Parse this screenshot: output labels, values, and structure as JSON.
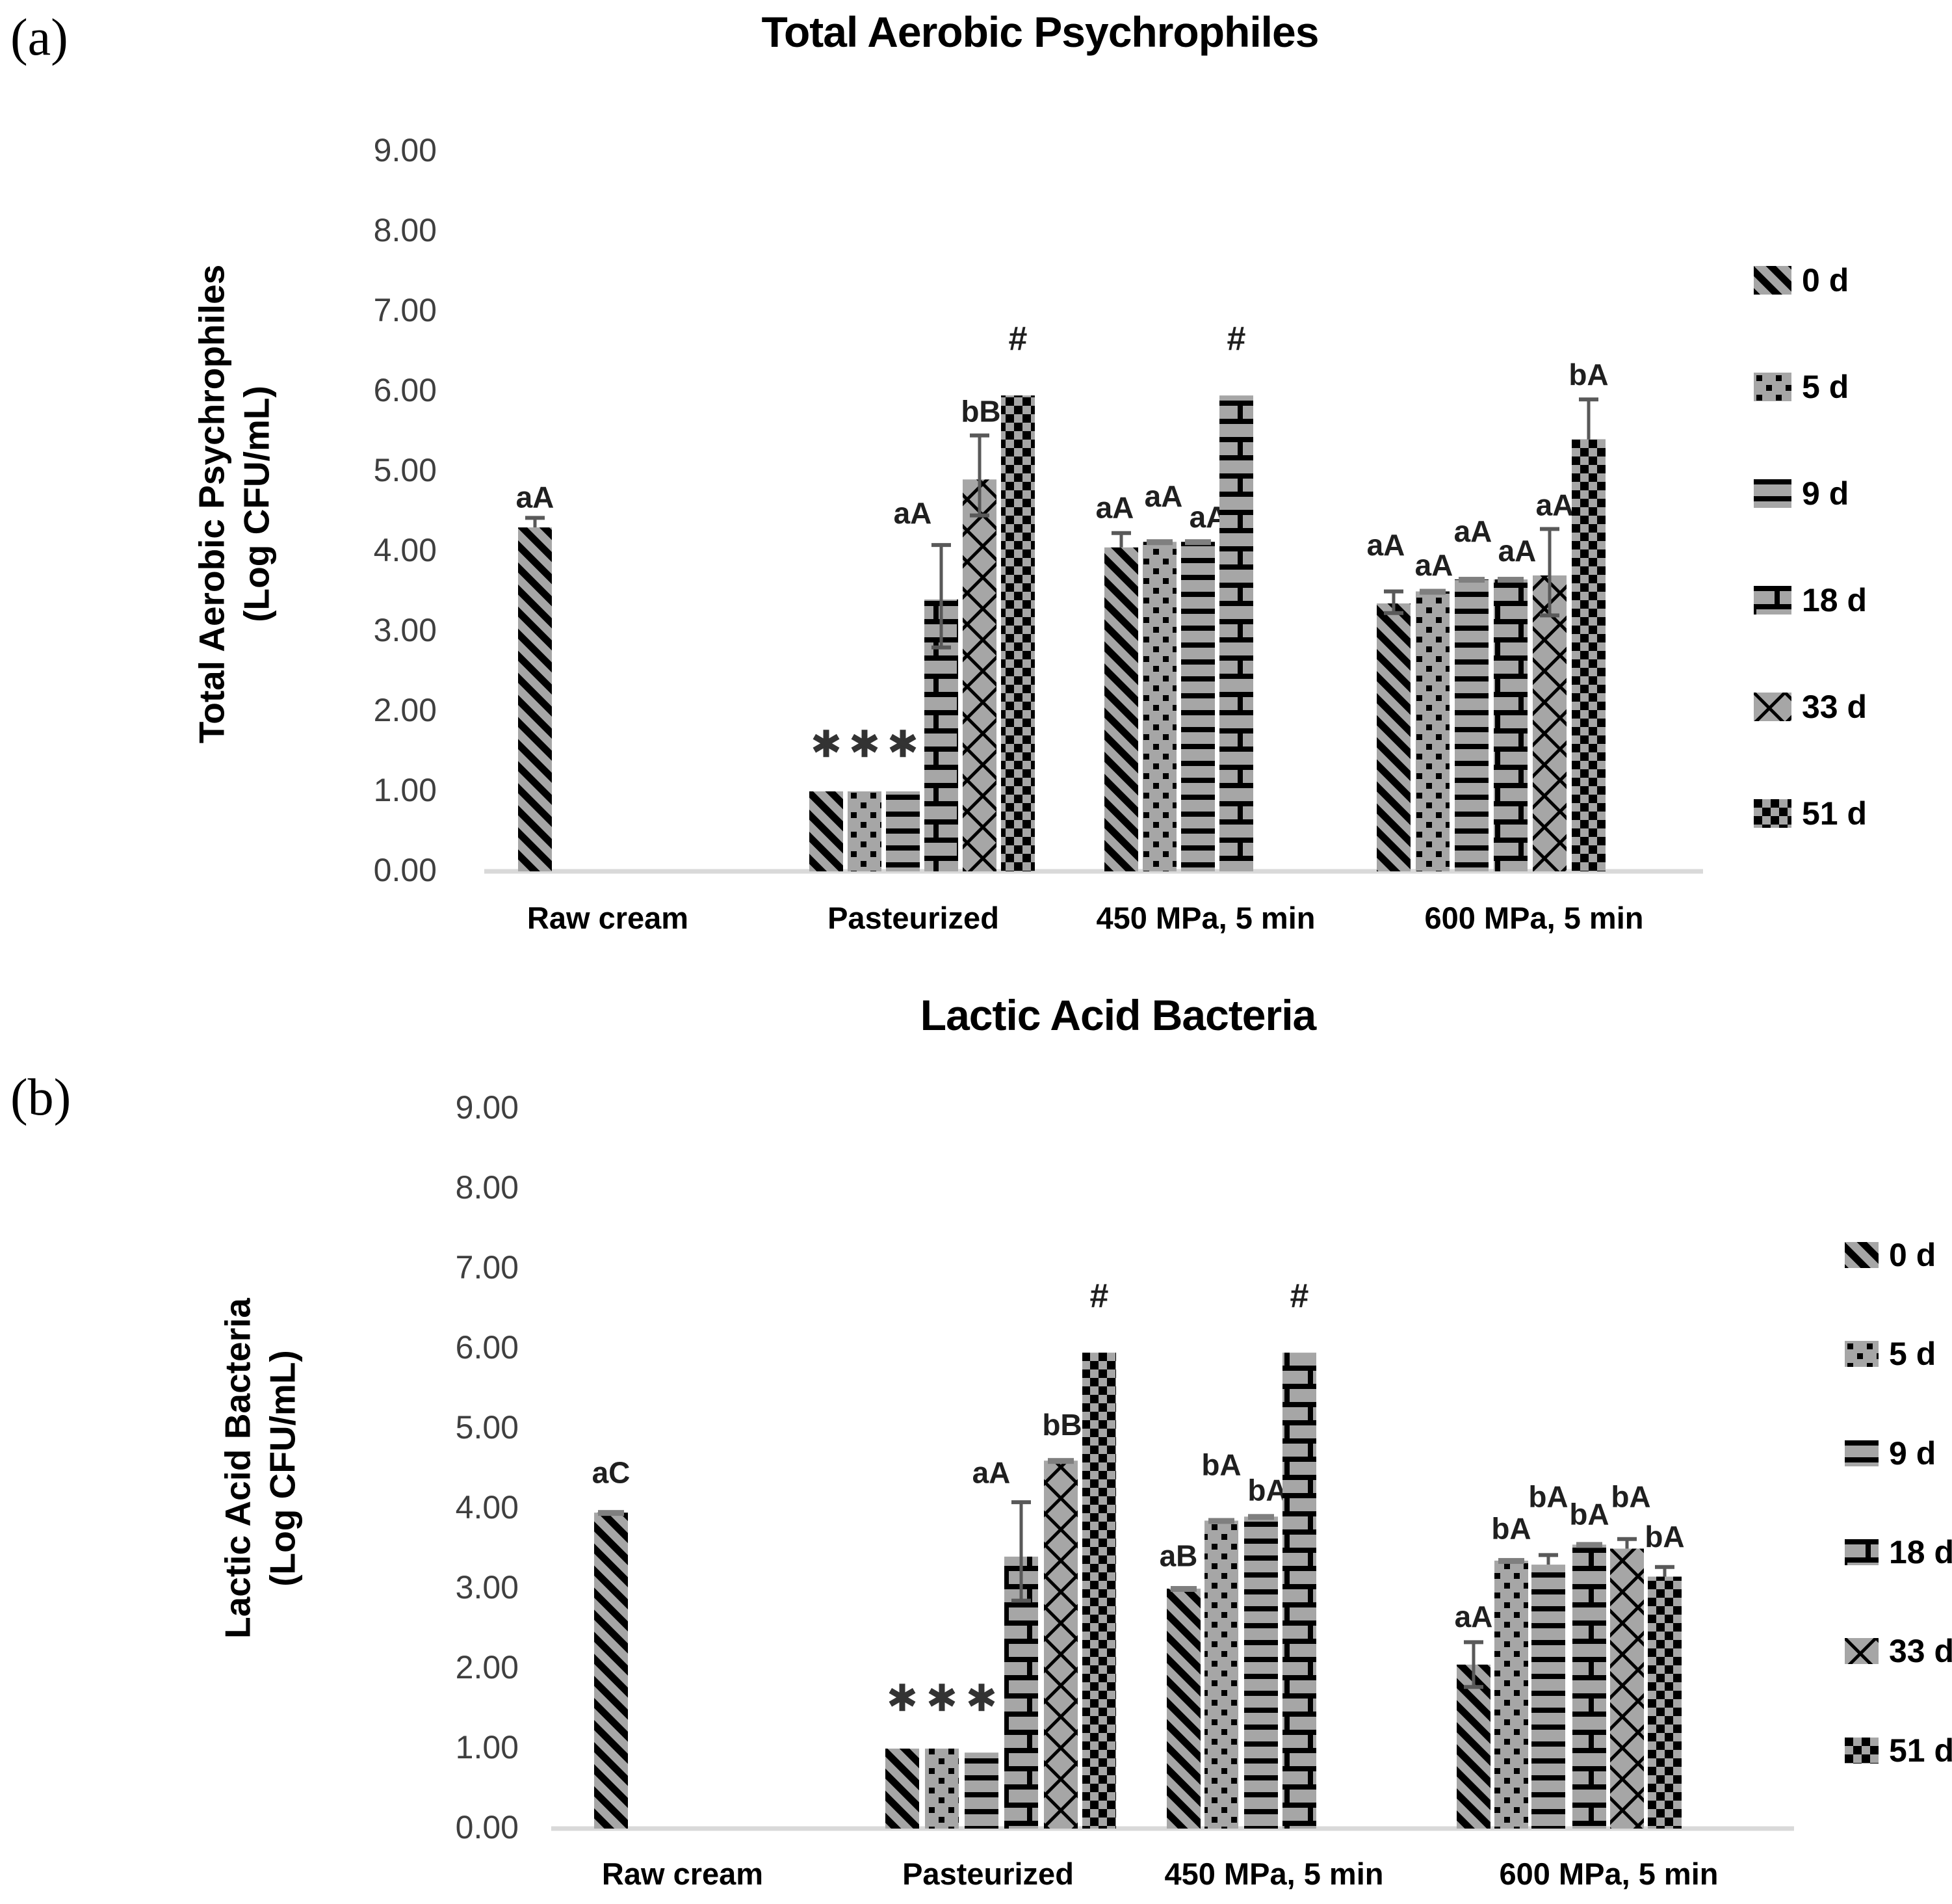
{
  "panel_labels": [
    "(a)",
    "(b)"
  ],
  "legend": {
    "items": [
      {
        "label": "0 d",
        "pattern": "diagonal-stripes"
      },
      {
        "label": "5 d",
        "pattern": "dots"
      },
      {
        "label": "9 d",
        "pattern": "horizontal-lines"
      },
      {
        "label": "18 d",
        "pattern": "brick"
      },
      {
        "label": "33 d",
        "pattern": "diamond-lattice"
      },
      {
        "label": "51 d",
        "pattern": "checkerboard"
      }
    ]
  },
  "colors": {
    "bar_gray": "#a6a6a6",
    "pattern_black": "#000000",
    "error_bar": "#595959",
    "bar_cap": "#7f7f7f",
    "axis_line": "#d9d9d9",
    "tick_text": "#3f3f3f",
    "text": "#000000"
  },
  "chart_data": [
    {
      "id": "a",
      "type": "bar",
      "title": "Total Aerobic Psychrophiles",
      "ylabel_line1": "Total Aerobic Psychrophiles",
      "ylabel_line2": "(Log CFU/mL)",
      "ylim": [
        0,
        9
      ],
      "ytick_labels": [
        "9.00",
        "8.00",
        "7.00",
        "6.00",
        "5.00",
        "4.00",
        "3.00",
        "2.00",
        "1.00",
        "0.00"
      ],
      "series_labels": [
        "0 d",
        "5 d",
        "9 d",
        "18 d",
        "33 d",
        "51 d"
      ],
      "categories": [
        "Raw cream",
        "Pasteurized",
        "450 MPa, 5 min",
        "600 MPa, 5 min"
      ],
      "legend_position": "right",
      "grid": false,
      "groups": [
        {
          "category": "Raw cream",
          "bars": [
            {
              "series": "0 d",
              "value": 4.3,
              "err_up": 0.12,
              "label": "aA"
            }
          ]
        },
        {
          "category": "Pasteurized",
          "bars": [
            {
              "series": "0 d",
              "value": 1.0,
              "symbol": "✳"
            },
            {
              "series": "5 d",
              "value": 1.0,
              "symbol": "✳"
            },
            {
              "series": "9 d",
              "value": 1.0,
              "symbol": "✳"
            },
            {
              "series": "18 d",
              "value": 3.4,
              "err_up": 0.68,
              "err_down": 0.6,
              "label": "aA"
            },
            {
              "series": "33 d",
              "value": 4.9,
              "err_up": 0.55,
              "err_down": 0.45,
              "label": "bB"
            },
            {
              "series": "51 d",
              "value": 5.95,
              "label": "#"
            }
          ]
        },
        {
          "category": "450 MPa, 5 min",
          "bars": [
            {
              "series": "0 d",
              "value": 4.05,
              "err_up": 0.18,
              "label": "aA"
            },
            {
              "series": "5 d",
              "value": 4.12,
              "cap": true,
              "label": "aA"
            },
            {
              "series": "9 d",
              "value": 4.12,
              "cap": true,
              "label": "aA"
            },
            {
              "series": "18 d",
              "value": 5.95,
              "label": "#"
            }
          ]
        },
        {
          "category": "600 MPa, 5 min",
          "bars": [
            {
              "series": "0 d",
              "value": 3.35,
              "err_up": 0.15,
              "err_down": 0.12,
              "label": "aA"
            },
            {
              "series": "5 d",
              "value": 3.5,
              "cap": true,
              "label": "aA"
            },
            {
              "series": "9 d",
              "value": 3.65,
              "cap": true,
              "label": "aA"
            },
            {
              "series": "18 d",
              "value": 3.65,
              "cap": true,
              "label": "aA"
            },
            {
              "series": "33 d",
              "value": 3.7,
              "err_up": 0.58,
              "err_down": 0.5,
              "label": "aA"
            },
            {
              "series": "51 d",
              "value": 5.4,
              "err_up": 0.5,
              "label": "bA"
            }
          ]
        }
      ]
    },
    {
      "id": "b",
      "type": "bar",
      "title": "Lactic Acid Bacteria",
      "ylabel_line1": "Lactic Acid Bacteria",
      "ylabel_line2": "(Log CFU/mL)",
      "ylim": [
        0,
        9
      ],
      "ytick_labels": [
        "9.00",
        "8.00",
        "7.00",
        "6.00",
        "5.00",
        "4.00",
        "3.00",
        "2.00",
        "1.00",
        "0.00"
      ],
      "series_labels": [
        "0 d",
        "5 d",
        "9 d",
        "18 d",
        "33 d",
        "51 d"
      ],
      "categories": [
        "Raw cream",
        "Pasteurized",
        "450 MPa, 5 min",
        "600 MPa, 5 min"
      ],
      "legend_position": "right",
      "grid": false,
      "groups": [
        {
          "category": "Raw cream",
          "bars": [
            {
              "series": "0 d",
              "value": 3.95,
              "cap": true,
              "label": "aC"
            }
          ]
        },
        {
          "category": "Pasteurized",
          "bars": [
            {
              "series": "0 d",
              "value": 1.0,
              "symbol": "✳"
            },
            {
              "series": "5 d",
              "value": 1.0,
              "symbol": "✳"
            },
            {
              "series": "9 d",
              "value": 0.95,
              "symbol": "✳"
            },
            {
              "series": "18 d",
              "value": 3.4,
              "err_up": 0.68,
              "err_down": 0.55,
              "label": "aA"
            },
            {
              "series": "33 d",
              "value": 4.6,
              "cap": true,
              "label": "bB"
            },
            {
              "series": "51 d",
              "value": 5.95,
              "label": "#"
            }
          ]
        },
        {
          "category": "450 MPa, 5 min",
          "bars": [
            {
              "series": "0 d",
              "value": 3.0,
              "cap": true,
              "label": "aB"
            },
            {
              "series": "5 d",
              "value": 3.85,
              "cap": true,
              "label": "bA"
            },
            {
              "series": "9 d",
              "value": 3.9,
              "cap": true,
              "label": "bA"
            },
            {
              "series": "18 d",
              "value": 5.95,
              "label": "#"
            }
          ]
        },
        {
          "category": "600 MPa, 5 min",
          "bars": [
            {
              "series": "0 d",
              "value": 2.05,
              "err_up": 0.28,
              "err_down": 0.28,
              "label": "aA"
            },
            {
              "series": "5 d",
              "value": 3.35,
              "cap": true,
              "label": "bA"
            },
            {
              "series": "9 d",
              "value": 3.3,
              "err_up": 0.12,
              "label": "bA"
            },
            {
              "series": "18 d",
              "value": 3.55,
              "cap": true,
              "label": "bA"
            },
            {
              "series": "33 d",
              "value": 3.5,
              "err_up": 0.12,
              "label": "bA"
            },
            {
              "series": "51 d",
              "value": 3.15,
              "err_up": 0.12,
              "label": "bA"
            }
          ]
        }
      ]
    }
  ]
}
